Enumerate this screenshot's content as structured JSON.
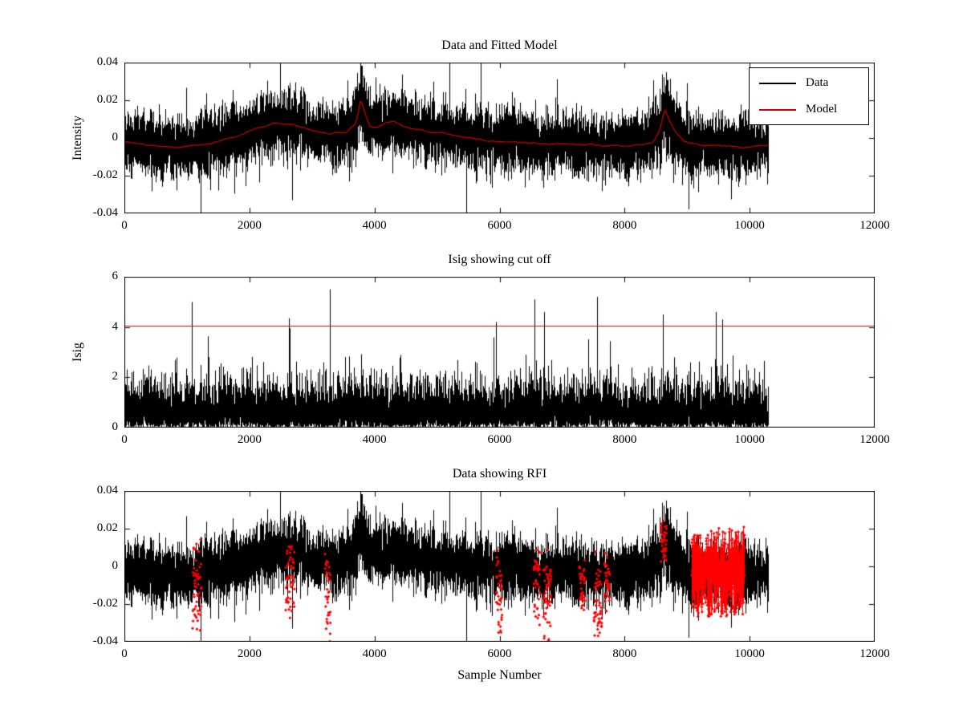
{
  "figure": {
    "background": "#ffffff",
    "axis_color": "#000000"
  },
  "chart_data": [
    {
      "type": "line",
      "title": "Data and Fitted Model",
      "xlabel": "",
      "ylabel": "Intensity",
      "xlim": [
        0,
        12000
      ],
      "ylim": [
        -0.04,
        0.04
      ],
      "xticks": [
        0,
        2000,
        4000,
        6000,
        8000,
        10000,
        12000
      ],
      "xtick_labels": [
        "0",
        "2000",
        "4000",
        "6000",
        "8000",
        "10000",
        "12000"
      ],
      "yticks": [
        -0.04,
        -0.02,
        0,
        0.02,
        0.04
      ],
      "ytick_labels": [
        "-0.04",
        "-0.02",
        "0",
        "0.02",
        "0.04"
      ],
      "grid": false,
      "legend": {
        "position": "northeast",
        "entries": [
          {
            "label": "Data",
            "color": "#000000"
          },
          {
            "label": "Model",
            "color": "#d40000"
          }
        ]
      },
      "series": [
        {
          "name": "Data",
          "kind": "noise",
          "color": "#000000",
          "seed": 42,
          "x_start": 0,
          "x_end": 10300,
          "base_std": 0.0075,
          "tail_prob": 0.009,
          "tail_mult": 2.2,
          "envelope": [
            [
              0,
              0.85
            ],
            [
              300,
              1.0
            ],
            [
              700,
              1.05
            ],
            [
              1200,
              1.1
            ],
            [
              1700,
              1.1
            ],
            [
              2200,
              1.15
            ],
            [
              2700,
              1.1
            ],
            [
              3200,
              1.0
            ],
            [
              3700,
              1.25
            ],
            [
              3900,
              1.1
            ],
            [
              4300,
              1.1
            ],
            [
              4800,
              1.05
            ],
            [
              5300,
              1.0
            ],
            [
              5800,
              1.05
            ],
            [
              6300,
              1.1
            ],
            [
              6800,
              1.05
            ],
            [
              7300,
              1.0
            ],
            [
              7800,
              1.0
            ],
            [
              8300,
              1.05
            ],
            [
              8600,
              1.25
            ],
            [
              8900,
              1.15
            ],
            [
              9200,
              1.0
            ],
            [
              9600,
              1.05
            ],
            [
              10000,
              1.1
            ],
            [
              10300,
              0.95
            ]
          ],
          "mean": [
            [
              0,
              -0.002
            ],
            [
              400,
              -0.004
            ],
            [
              900,
              -0.005
            ],
            [
              1400,
              -0.003
            ],
            [
              1800,
              0.001
            ],
            [
              2100,
              0.005
            ],
            [
              2400,
              0.008
            ],
            [
              2700,
              0.007
            ],
            [
              3000,
              0.004
            ],
            [
              3300,
              0.002
            ],
            [
              3550,
              0.003
            ],
            [
              3700,
              0.008
            ],
            [
              3780,
              0.021
            ],
            [
              3850,
              0.013
            ],
            [
              3930,
              0.006
            ],
            [
              4050,
              0.006
            ],
            [
              4180,
              0.008
            ],
            [
              4300,
              0.009
            ],
            [
              4420,
              0.007
            ],
            [
              4600,
              0.005
            ],
            [
              4900,
              0.003
            ],
            [
              5300,
              0.001
            ],
            [
              5700,
              -0.001
            ],
            [
              6100,
              -0.002
            ],
            [
              6600,
              -0.003
            ],
            [
              7100,
              -0.003
            ],
            [
              7600,
              -0.004
            ],
            [
              8100,
              -0.004
            ],
            [
              8450,
              -0.002
            ],
            [
              8560,
              0.004
            ],
            [
              8640,
              0.015
            ],
            [
              8720,
              0.009
            ],
            [
              8820,
              0.003
            ],
            [
              8950,
              -0.002
            ],
            [
              9200,
              -0.004
            ],
            [
              9600,
              -0.004
            ],
            [
              10000,
              -0.005
            ],
            [
              10300,
              -0.004
            ]
          ]
        },
        {
          "name": "Model",
          "kind": "keypoints",
          "color": "#d40000",
          "seed": 5,
          "jitter": 0.0006,
          "points": [
            [
              0,
              -0.002
            ],
            [
              400,
              -0.004
            ],
            [
              900,
              -0.005
            ],
            [
              1400,
              -0.003
            ],
            [
              1800,
              0.001
            ],
            [
              2100,
              0.005
            ],
            [
              2400,
              0.008
            ],
            [
              2700,
              0.007
            ],
            [
              3000,
              0.004
            ],
            [
              3300,
              0.002
            ],
            [
              3550,
              0.003
            ],
            [
              3700,
              0.008
            ],
            [
              3780,
              0.021
            ],
            [
              3850,
              0.013
            ],
            [
              3930,
              0.006
            ],
            [
              4050,
              0.006
            ],
            [
              4180,
              0.008
            ],
            [
              4300,
              0.009
            ],
            [
              4420,
              0.007
            ],
            [
              4600,
              0.005
            ],
            [
              4900,
              0.003
            ],
            [
              5300,
              0.001
            ],
            [
              5700,
              -0.001
            ],
            [
              6100,
              -0.002
            ],
            [
              6600,
              -0.003
            ],
            [
              7100,
              -0.003
            ],
            [
              7600,
              -0.004
            ],
            [
              8100,
              -0.004
            ],
            [
              8450,
              -0.002
            ],
            [
              8560,
              0.004
            ],
            [
              8640,
              0.015
            ],
            [
              8720,
              0.009
            ],
            [
              8820,
              0.003
            ],
            [
              8950,
              -0.002
            ],
            [
              9200,
              -0.004
            ],
            [
              9600,
              -0.004
            ],
            [
              10000,
              -0.005
            ],
            [
              10300,
              -0.004
            ]
          ]
        }
      ]
    },
    {
      "type": "line",
      "title": "Isig showing cut off",
      "xlabel": "",
      "ylabel": "Isig",
      "xlim": [
        0,
        12000
      ],
      "ylim": [
        0,
        6
      ],
      "xticks": [
        0,
        2000,
        4000,
        6000,
        8000,
        10000,
        12000
      ],
      "xtick_labels": [
        "0",
        "2000",
        "4000",
        "6000",
        "8000",
        "10000",
        "12000"
      ],
      "yticks": [
        0,
        2,
        4,
        6
      ],
      "ytick_labels": [
        "0",
        "2",
        "4",
        "6"
      ],
      "grid": false,
      "series": [
        {
          "name": "Isig",
          "kind": "positive_noise",
          "color": "#000000",
          "seed": 7,
          "x_start": 0,
          "x_end": 10300,
          "scale": 0.82,
          "tail_prob": 0.012,
          "tail_mult": 1.8,
          "spikes": [
            [
              1080,
              5.0
            ],
            [
              2640,
              4.35
            ],
            [
              3290,
              5.5
            ],
            [
              5950,
              4.2
            ],
            [
              6560,
              5.1
            ],
            [
              6720,
              4.6
            ],
            [
              7560,
              5.2
            ],
            [
              8620,
              4.5
            ],
            [
              9460,
              4.6
            ],
            [
              9570,
              4.3
            ]
          ]
        },
        {
          "name": "Cutoff",
          "kind": "hline",
          "color": "#d40000",
          "y": 4.05
        }
      ]
    },
    {
      "type": "line",
      "title": "Data showing RFI",
      "xlabel": "Sample Number",
      "ylabel": "",
      "xlim": [
        0,
        12000
      ],
      "ylim": [
        -0.04,
        0.04
      ],
      "xticks": [
        0,
        2000,
        4000,
        6000,
        8000,
        10000,
        12000
      ],
      "xtick_labels": [
        "0",
        "2000",
        "4000",
        "6000",
        "8000",
        "10000",
        "12000"
      ],
      "yticks": [
        -0.04,
        -0.02,
        0,
        0.02,
        0.04
      ],
      "ytick_labels": [
        "-0.04",
        "-0.02",
        "0",
        "0.02",
        "0.04"
      ],
      "grid": false,
      "series": [
        {
          "name": "Data",
          "kind": "noise",
          "color": "#000000",
          "seed": 42,
          "x_start": 0,
          "x_end": 10300,
          "base_std": 0.0075,
          "tail_prob": 0.009,
          "tail_mult": 2.2,
          "envelope": [
            [
              0,
              0.85
            ],
            [
              300,
              1.0
            ],
            [
              700,
              1.05
            ],
            [
              1200,
              1.1
            ],
            [
              1700,
              1.1
            ],
            [
              2200,
              1.15
            ],
            [
              2700,
              1.1
            ],
            [
              3200,
              1.0
            ],
            [
              3700,
              1.25
            ],
            [
              3900,
              1.1
            ],
            [
              4300,
              1.1
            ],
            [
              4800,
              1.05
            ],
            [
              5300,
              1.0
            ],
            [
              5800,
              1.05
            ],
            [
              6300,
              1.1
            ],
            [
              6800,
              1.05
            ],
            [
              7300,
              1.0
            ],
            [
              7800,
              1.0
            ],
            [
              8300,
              1.05
            ],
            [
              8600,
              1.25
            ],
            [
              8900,
              1.15
            ],
            [
              9200,
              1.0
            ],
            [
              9600,
              1.05
            ],
            [
              10000,
              1.1
            ],
            [
              10300,
              0.95
            ]
          ],
          "mean": [
            [
              0,
              -0.002
            ],
            [
              400,
              -0.004
            ],
            [
              900,
              -0.005
            ],
            [
              1400,
              -0.003
            ],
            [
              1800,
              0.001
            ],
            [
              2100,
              0.005
            ],
            [
              2400,
              0.008
            ],
            [
              2700,
              0.007
            ],
            [
              3000,
              0.004
            ],
            [
              3300,
              0.002
            ],
            [
              3550,
              0.003
            ],
            [
              3700,
              0.008
            ],
            [
              3780,
              0.021
            ],
            [
              3850,
              0.013
            ],
            [
              3930,
              0.006
            ],
            [
              4050,
              0.006
            ],
            [
              4180,
              0.008
            ],
            [
              4300,
              0.009
            ],
            [
              4420,
              0.007
            ],
            [
              4600,
              0.005
            ],
            [
              4900,
              0.003
            ],
            [
              5300,
              0.001
            ],
            [
              5700,
              -0.001
            ],
            [
              6100,
              -0.002
            ],
            [
              6600,
              -0.003
            ],
            [
              7100,
              -0.003
            ],
            [
              7600,
              -0.004
            ],
            [
              8100,
              -0.004
            ],
            [
              8450,
              -0.002
            ],
            [
              8560,
              0.004
            ],
            [
              8640,
              0.015
            ],
            [
              8720,
              0.009
            ],
            [
              8820,
              0.003
            ],
            [
              8950,
              -0.002
            ],
            [
              9200,
              -0.004
            ],
            [
              9600,
              -0.004
            ],
            [
              10000,
              -0.005
            ],
            [
              10300,
              -0.004
            ]
          ]
        },
        {
          "name": "RFI",
          "kind": "clusters",
          "color": "#ff0000",
          "seed": 99,
          "marker": "diamond",
          "per_column": 5,
          "clusters": [
            {
              "x0": 1100,
              "x1": 1220,
              "y0": -0.041,
              "y1": 0.012
            },
            {
              "x0": 2590,
              "x1": 2720,
              "y0": -0.027,
              "y1": 0.013
            },
            {
              "x0": 3215,
              "x1": 3295,
              "y0": -0.04,
              "y1": 0.013
            },
            {
              "x0": 5955,
              "x1": 6040,
              "y0": -0.036,
              "y1": 0.008
            },
            {
              "x0": 6555,
              "x1": 6640,
              "y0": -0.03,
              "y1": 0.01
            },
            {
              "x0": 6700,
              "x1": 6820,
              "y0": -0.041,
              "y1": 0.01
            },
            {
              "x0": 7280,
              "x1": 7360,
              "y0": -0.031,
              "y1": 0.006
            },
            {
              "x0": 7515,
              "x1": 7625,
              "y0": -0.041,
              "y1": 0.008
            },
            {
              "x0": 7680,
              "x1": 7760,
              "y0": -0.026,
              "y1": 0.006
            },
            {
              "x0": 8585,
              "x1": 8670,
              "y0": 0.002,
              "y1": 0.025
            },
            {
              "x0": 9080,
              "x1": 9920,
              "y0": -0.027,
              "y1": 0.02,
              "dense": true
            }
          ]
        }
      ]
    }
  ]
}
